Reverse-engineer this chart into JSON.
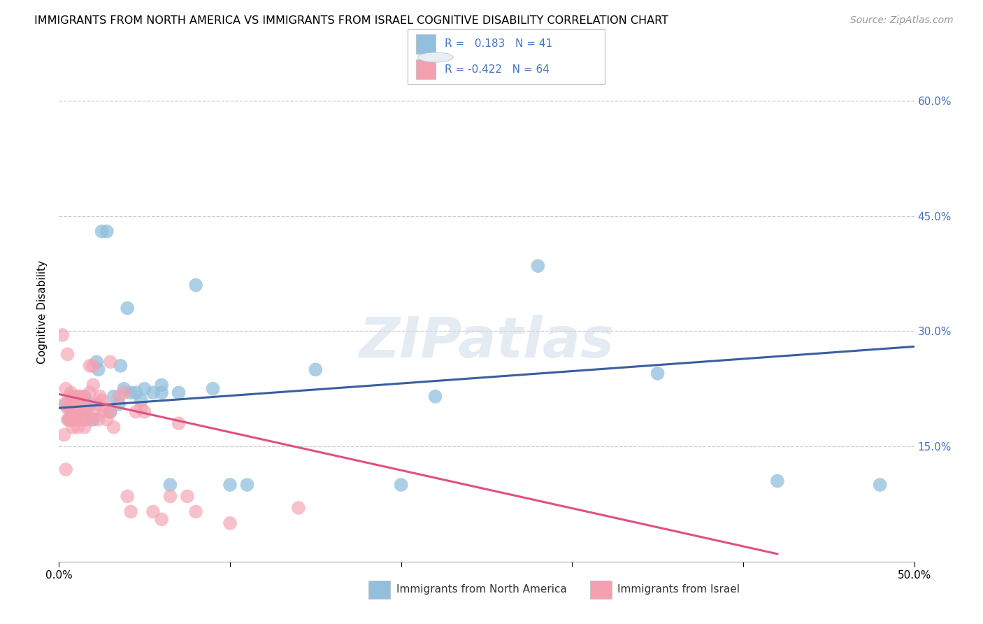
{
  "title": "IMMIGRANTS FROM NORTH AMERICA VS IMMIGRANTS FROM ISRAEL COGNITIVE DISABILITY CORRELATION CHART",
  "source": "Source: ZipAtlas.com",
  "ylabel": "Cognitive Disability",
  "legend_blue_label": "Immigrants from North America",
  "legend_pink_label": "Immigrants from Israel",
  "R_blue": 0.183,
  "N_blue": 41,
  "R_pink": -0.422,
  "N_pink": 64,
  "x_min": 0.0,
  "x_max": 0.5,
  "y_min": 0.0,
  "y_max": 0.65,
  "yticks": [
    0.15,
    0.3,
    0.45,
    0.6
  ],
  "ytick_labels": [
    "15.0%",
    "30.0%",
    "45.0%",
    "60.0%"
  ],
  "xticks": [
    0.0,
    0.1,
    0.2,
    0.3,
    0.4,
    0.5
  ],
  "xtick_labels": [
    "0.0%",
    "",
    "",
    "",
    "",
    "50.0%"
  ],
  "watermark": "ZIPatlas",
  "blue_color": "#92bfde",
  "pink_color": "#f4a0b0",
  "blue_line_color": "#3a5fa0",
  "pink_line_color": "#e05080",
  "blue_scatter": [
    [
      0.004,
      0.205
    ],
    [
      0.006,
      0.185
    ],
    [
      0.007,
      0.2
    ],
    [
      0.008,
      0.215
    ],
    [
      0.01,
      0.19
    ],
    [
      0.012,
      0.2
    ],
    [
      0.013,
      0.195
    ],
    [
      0.015,
      0.215
    ],
    [
      0.016,
      0.185
    ],
    [
      0.018,
      0.205
    ],
    [
      0.02,
      0.185
    ],
    [
      0.022,
      0.26
    ],
    [
      0.023,
      0.25
    ],
    [
      0.025,
      0.43
    ],
    [
      0.028,
      0.43
    ],
    [
      0.03,
      0.195
    ],
    [
      0.032,
      0.215
    ],
    [
      0.035,
      0.205
    ],
    [
      0.036,
      0.255
    ],
    [
      0.038,
      0.225
    ],
    [
      0.04,
      0.33
    ],
    [
      0.042,
      0.22
    ],
    [
      0.045,
      0.22
    ],
    [
      0.048,
      0.21
    ],
    [
      0.05,
      0.225
    ],
    [
      0.055,
      0.22
    ],
    [
      0.06,
      0.23
    ],
    [
      0.06,
      0.22
    ],
    [
      0.065,
      0.1
    ],
    [
      0.07,
      0.22
    ],
    [
      0.08,
      0.36
    ],
    [
      0.09,
      0.225
    ],
    [
      0.1,
      0.1
    ],
    [
      0.11,
      0.1
    ],
    [
      0.15,
      0.25
    ],
    [
      0.2,
      0.1
    ],
    [
      0.22,
      0.215
    ],
    [
      0.28,
      0.385
    ],
    [
      0.35,
      0.245
    ],
    [
      0.42,
      0.105
    ],
    [
      0.48,
      0.1
    ]
  ],
  "pink_scatter": [
    [
      0.002,
      0.295
    ],
    [
      0.003,
      0.205
    ],
    [
      0.003,
      0.165
    ],
    [
      0.004,
      0.225
    ],
    [
      0.004,
      0.12
    ],
    [
      0.005,
      0.27
    ],
    [
      0.005,
      0.2
    ],
    [
      0.005,
      0.185
    ],
    [
      0.006,
      0.215
    ],
    [
      0.006,
      0.2
    ],
    [
      0.006,
      0.185
    ],
    [
      0.007,
      0.22
    ],
    [
      0.007,
      0.2
    ],
    [
      0.007,
      0.185
    ],
    [
      0.008,
      0.21
    ],
    [
      0.008,
      0.195
    ],
    [
      0.008,
      0.175
    ],
    [
      0.009,
      0.2
    ],
    [
      0.009,
      0.185
    ],
    [
      0.01,
      0.215
    ],
    [
      0.01,
      0.2
    ],
    [
      0.01,
      0.185
    ],
    [
      0.011,
      0.195
    ],
    [
      0.011,
      0.175
    ],
    [
      0.012,
      0.215
    ],
    [
      0.012,
      0.2
    ],
    [
      0.013,
      0.215
    ],
    [
      0.013,
      0.195
    ],
    [
      0.014,
      0.185
    ],
    [
      0.015,
      0.215
    ],
    [
      0.015,
      0.175
    ],
    [
      0.016,
      0.2
    ],
    [
      0.017,
      0.19
    ],
    [
      0.018,
      0.255
    ],
    [
      0.018,
      0.22
    ],
    [
      0.019,
      0.185
    ],
    [
      0.02,
      0.255
    ],
    [
      0.02,
      0.23
    ],
    [
      0.021,
      0.195
    ],
    [
      0.022,
      0.205
    ],
    [
      0.023,
      0.185
    ],
    [
      0.024,
      0.215
    ],
    [
      0.025,
      0.21
    ],
    [
      0.026,
      0.195
    ],
    [
      0.028,
      0.2
    ],
    [
      0.028,
      0.185
    ],
    [
      0.03,
      0.26
    ],
    [
      0.03,
      0.195
    ],
    [
      0.032,
      0.175
    ],
    [
      0.035,
      0.215
    ],
    [
      0.038,
      0.22
    ],
    [
      0.04,
      0.085
    ],
    [
      0.042,
      0.065
    ],
    [
      0.045,
      0.195
    ],
    [
      0.048,
      0.2
    ],
    [
      0.05,
      0.195
    ],
    [
      0.055,
      0.065
    ],
    [
      0.06,
      0.055
    ],
    [
      0.065,
      0.085
    ],
    [
      0.07,
      0.18
    ],
    [
      0.075,
      0.085
    ],
    [
      0.08,
      0.065
    ],
    [
      0.1,
      0.05
    ],
    [
      0.14,
      0.07
    ]
  ],
  "blue_trendline": {
    "x_start": 0.0,
    "y_start": 0.2,
    "x_end": 0.5,
    "y_end": 0.28
  },
  "pink_trendline": {
    "x_start": 0.0,
    "y_start": 0.218,
    "x_end": 0.42,
    "y_end": 0.01
  },
  "title_fontsize": 11.5,
  "axis_label_fontsize": 11,
  "tick_fontsize": 11,
  "legend_fontsize": 11,
  "source_fontsize": 10,
  "background_color": "#ffffff",
  "grid_color": "#cccccc",
  "right_tick_color": "#4472c4"
}
